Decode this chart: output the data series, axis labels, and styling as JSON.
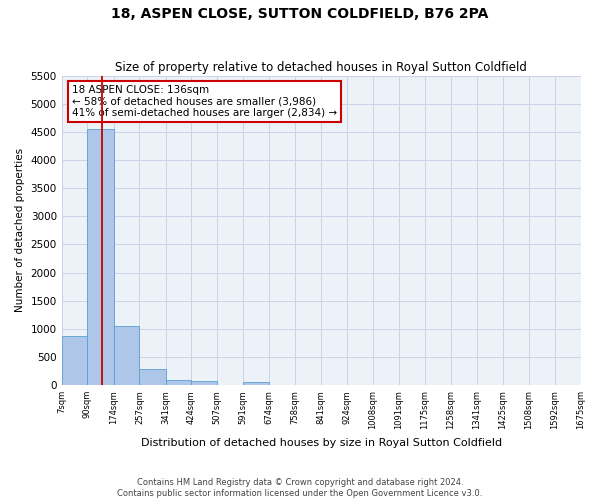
{
  "title": "18, ASPEN CLOSE, SUTTON COLDFIELD, B76 2PA",
  "subtitle": "Size of property relative to detached houses in Royal Sutton Coldfield",
  "xlabel": "Distribution of detached houses by size in Royal Sutton Coldfield",
  "ylabel": "Number of detached properties",
  "footer_line1": "Contains HM Land Registry data © Crown copyright and database right 2024.",
  "footer_line2": "Contains public sector information licensed under the Open Government Licence v3.0.",
  "annotation_title": "18 ASPEN CLOSE: 136sqm",
  "annotation_line1": "← 58% of detached houses are smaller (3,986)",
  "annotation_line2": "41% of semi-detached houses are larger (2,834) →",
  "property_size": 136,
  "bar_edges": [
    7,
    90,
    174,
    257,
    341,
    424,
    507,
    591,
    674,
    758,
    841,
    924,
    1008,
    1091,
    1175,
    1258,
    1341,
    1425,
    1508,
    1592,
    1675
  ],
  "bar_heights": [
    880,
    4560,
    1060,
    285,
    85,
    70,
    0,
    50,
    0,
    0,
    0,
    0,
    0,
    0,
    0,
    0,
    0,
    0,
    0,
    0
  ],
  "bar_color": "#aec6e8",
  "bar_edge_color": "#5a9fd4",
  "red_line_color": "#cc0000",
  "grid_color": "#c8d4e8",
  "bg_color": "#edf2f9",
  "ylim": [
    0,
    5500
  ],
  "yticks": [
    0,
    500,
    1000,
    1500,
    2000,
    2500,
    3000,
    3500,
    4000,
    4500,
    5000,
    5500
  ]
}
